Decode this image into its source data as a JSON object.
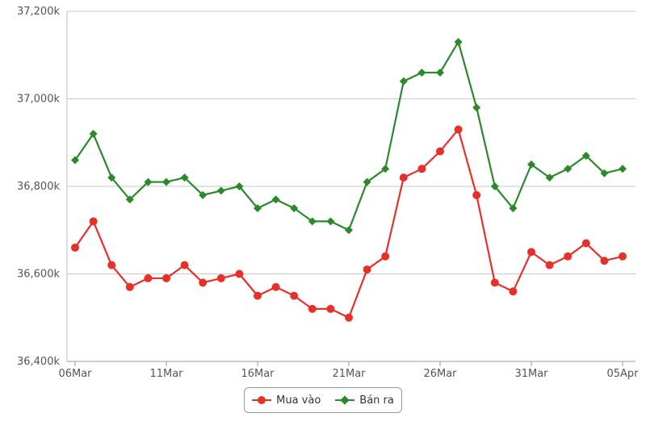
{
  "chart_data": {
    "type": "line",
    "x_dates": [
      "2024-03-06",
      "2024-03-07",
      "2024-03-08",
      "2024-03-09",
      "2024-03-10",
      "2024-03-11",
      "2024-03-12",
      "2024-03-13",
      "2024-03-14",
      "2024-03-15",
      "2024-03-16",
      "2024-03-17",
      "2024-03-18",
      "2024-03-19",
      "2024-03-20",
      "2024-03-21",
      "2024-03-22",
      "2024-03-23",
      "2024-03-24",
      "2024-03-25",
      "2024-03-26",
      "2024-03-27",
      "2024-03-28",
      "2024-03-29",
      "2024-03-30",
      "2024-03-31",
      "2024-04-01",
      "2024-04-02",
      "2024-04-03",
      "2024-04-04",
      "2024-04-05"
    ],
    "x_tick_labels": [
      "06Mar",
      "11Mar",
      "16Mar",
      "21Mar",
      "26Mar",
      "31Mar",
      "05Apr"
    ],
    "y_tick_labels": [
      "36,400k",
      "36,600k",
      "36,800k",
      "37,000k",
      "37,200k"
    ],
    "y_ticks": [
      36400,
      36600,
      36800,
      37000,
      37200
    ],
    "ylim": [
      36400,
      37200
    ],
    "grid": true,
    "legend_position": "bottom-center",
    "series": [
      {
        "name": "Mua vào",
        "color": "#e8302a",
        "marker": "circle",
        "values": [
          36660,
          36720,
          36620,
          36570,
          36590,
          36590,
          36620,
          36580,
          36590,
          36600,
          36550,
          36570,
          36550,
          36520,
          36520,
          36500,
          36610,
          36640,
          36820,
          36840,
          36880,
          36930,
          36780,
          36580,
          36560,
          36650,
          36620,
          36640,
          36670,
          36630,
          36640
        ]
      },
      {
        "name": "Bán ra",
        "color": "#2a8a2a",
        "marker": "diamond",
        "values": [
          36860,
          36920,
          36820,
          36770,
          36810,
          36810,
          36820,
          36780,
          36790,
          36800,
          36750,
          36770,
          36750,
          36720,
          36720,
          36700,
          36810,
          36840,
          37040,
          37060,
          37060,
          37130,
          36980,
          36800,
          36750,
          36850,
          36820,
          36840,
          36870,
          36830,
          36840
        ]
      }
    ]
  }
}
